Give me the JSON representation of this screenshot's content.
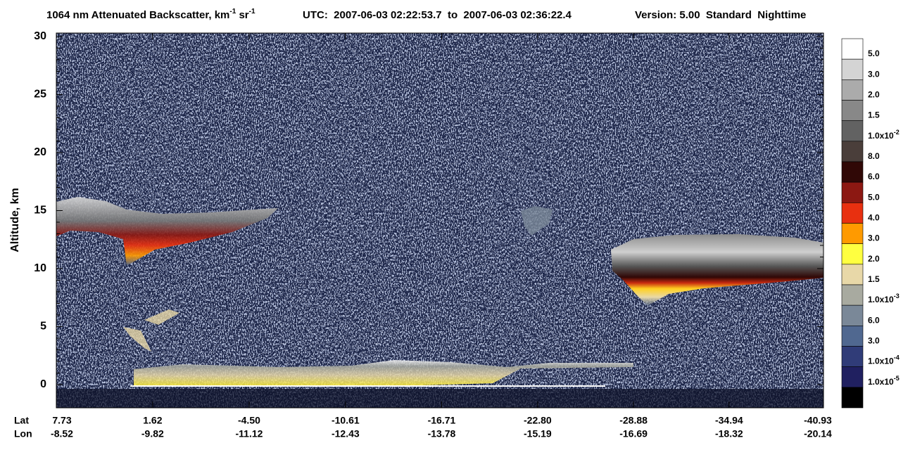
{
  "chart_data": {
    "type": "heatmap",
    "title": {
      "main": "1064 nm Attenuated Backscatter, km",
      "exp1": "-1",
      "unit2": " sr",
      "exp2": "-1"
    },
    "utc": "UTC:  2007-06-03 02:22:53.7  to  2007-06-03 02:36:22.4",
    "version": "Version: 5.00  Standard  Nighttime",
    "ylabel": "Altitude, km",
    "ylim": [
      -2,
      30.3
    ],
    "yticks": [
      0,
      5,
      10,
      15,
      20,
      25,
      30
    ],
    "xlim": [
      7.73,
      -40.93
    ],
    "x_row_labels": [
      "Lat",
      "Lon"
    ],
    "xticks": [
      7.73,
      1.62,
      {
        "value": -4.5,
        "label": "-4.50"
      },
      -10.61,
      -16.71,
      {
        "value": -22.8,
        "label": "-22.80"
      },
      -28.88,
      -34.94,
      -40.93
    ],
    "lon_labels": [
      "-8.52",
      "-9.82",
      "-11.12",
      "-12.43",
      "-13.78",
      "-15.19",
      "-16.69",
      "-18.32",
      "-20.14"
    ],
    "colorbar": {
      "colors": [
        "#ffffff",
        "#d4d4d4",
        "#ababab",
        "#888888",
        "#626262",
        "#4a3e3a",
        "#300806",
        "#8c1812",
        "#e83010",
        "#ff9a00",
        "#ffff40",
        "#e8d8a8",
        "#a8aaa0",
        "#7a8898",
        "#506890",
        "#303c78",
        "#202060",
        "#000000"
      ],
      "labels": [
        {
          "base": "5.0"
        },
        {
          "base": "3.0"
        },
        {
          "base": "2.0"
        },
        {
          "base": "1.5"
        },
        {
          "base": "1.0x10",
          "exp": "-2"
        },
        {
          "base": "8.0"
        },
        {
          "base": "6.0"
        },
        {
          "base": "5.0"
        },
        {
          "base": "4.0"
        },
        {
          "base": "3.0"
        },
        {
          "base": "2.0"
        },
        {
          "base": "1.5"
        },
        {
          "base": "1.0x10",
          "exp": "-3"
        },
        {
          "base": "6.0"
        },
        {
          "base": "3.0"
        },
        {
          "base": "1.0x10",
          "exp": "-4"
        },
        {
          "base": "1.0x10",
          "exp": "-5"
        }
      ]
    }
  }
}
